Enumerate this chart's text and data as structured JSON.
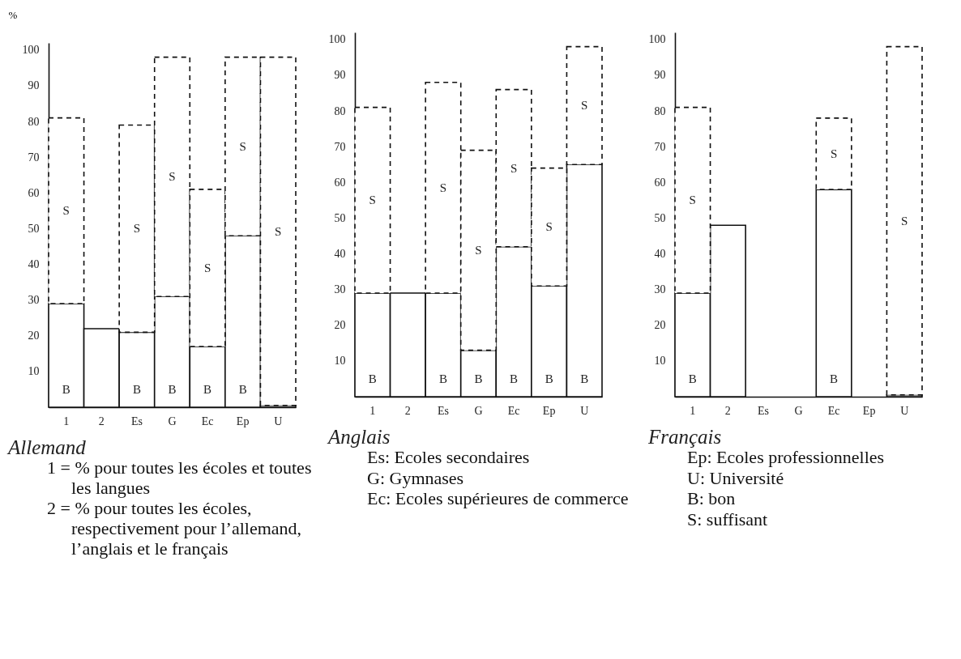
{
  "chart_data": [
    {
      "type": "bar",
      "title": "Allemand",
      "ylabel": "%",
      "stacked": true,
      "categories": [
        "1",
        "2",
        "Es",
        "G",
        "Ec",
        "Ep",
        "U"
      ],
      "ylim": [
        0,
        102
      ],
      "yticks": [
        10,
        20,
        30,
        40,
        50,
        60,
        70,
        80,
        90,
        100
      ],
      "series": [
        {
          "color": "#ffffff",
          "line_style": "solid",
          "values": [
            29,
            22,
            21,
            31,
            17,
            48,
            0.5
          ],
          "value_labels": [
            "B",
            null,
            "B",
            "B",
            "B",
            "B",
            null
          ]
        },
        {
          "color": "#ffffff",
          "line_style": "dashed",
          "values": [
            52,
            null,
            58,
            67,
            44,
            50,
            97.5
          ],
          "value_labels": [
            "S",
            null,
            "S",
            "S",
            "S",
            "S",
            "S"
          ]
        }
      ],
      "annotations": [
        "1 = % pour toutes les écoles et toutes les langues",
        "2 = % pour toutes les écoles, respectivement pour l’allemand, l’anglais et le français"
      ]
    },
    {
      "type": "bar",
      "title": "Anglais",
      "stacked": true,
      "categories": [
        "1",
        "2",
        "Es",
        "G",
        "Ec",
        "Ep",
        "U"
      ],
      "ylim": [
        0,
        102
      ],
      "yticks": [
        10,
        20,
        30,
        40,
        50,
        60,
        70,
        80,
        90,
        100
      ],
      "series": [
        {
          "color": "#ffffff",
          "line_style": "solid",
          "values": [
            29,
            29,
            29,
            13,
            42,
            31,
            65
          ],
          "value_labels": [
            "B",
            null,
            "B",
            "B",
            "B",
            "B",
            "B"
          ]
        },
        {
          "color": "#ffffff",
          "line_style": "dashed",
          "values": [
            52,
            null,
            59,
            56,
            44,
            33,
            33
          ],
          "value_labels": [
            "S",
            null,
            "S",
            "S",
            "S",
            "S",
            "S"
          ]
        }
      ],
      "annotations": [
        "Es: Ecoles secondaires",
        "G: Gymnases",
        "Ec: Ecoles supérieures de commerce"
      ]
    },
    {
      "type": "bar",
      "title": "Français",
      "stacked": true,
      "categories": [
        "1",
        "2",
        "Es",
        "G",
        "Ec",
        "Ep",
        "U"
      ],
      "ylim": [
        0,
        102
      ],
      "yticks": [
        10,
        20,
        30,
        40,
        50,
        60,
        70,
        80,
        90,
        100
      ],
      "series": [
        {
          "color": "#ffffff",
          "line_style": "solid",
          "values": [
            29,
            48,
            null,
            null,
            58,
            null,
            0.5
          ],
          "value_labels": [
            "B",
            null,
            null,
            null,
            "B",
            null,
            null
          ]
        },
        {
          "color": "#ffffff",
          "line_style": "dashed",
          "values": [
            52,
            null,
            null,
            null,
            20,
            null,
            97.5
          ],
          "value_labels": [
            "S",
            null,
            null,
            null,
            "S",
            null,
            "S"
          ]
        }
      ],
      "annotations": [
        "Ep: Ecoles professionnelles",
        "U: Université",
        "B: bon",
        "S: suffisant"
      ]
    }
  ]
}
